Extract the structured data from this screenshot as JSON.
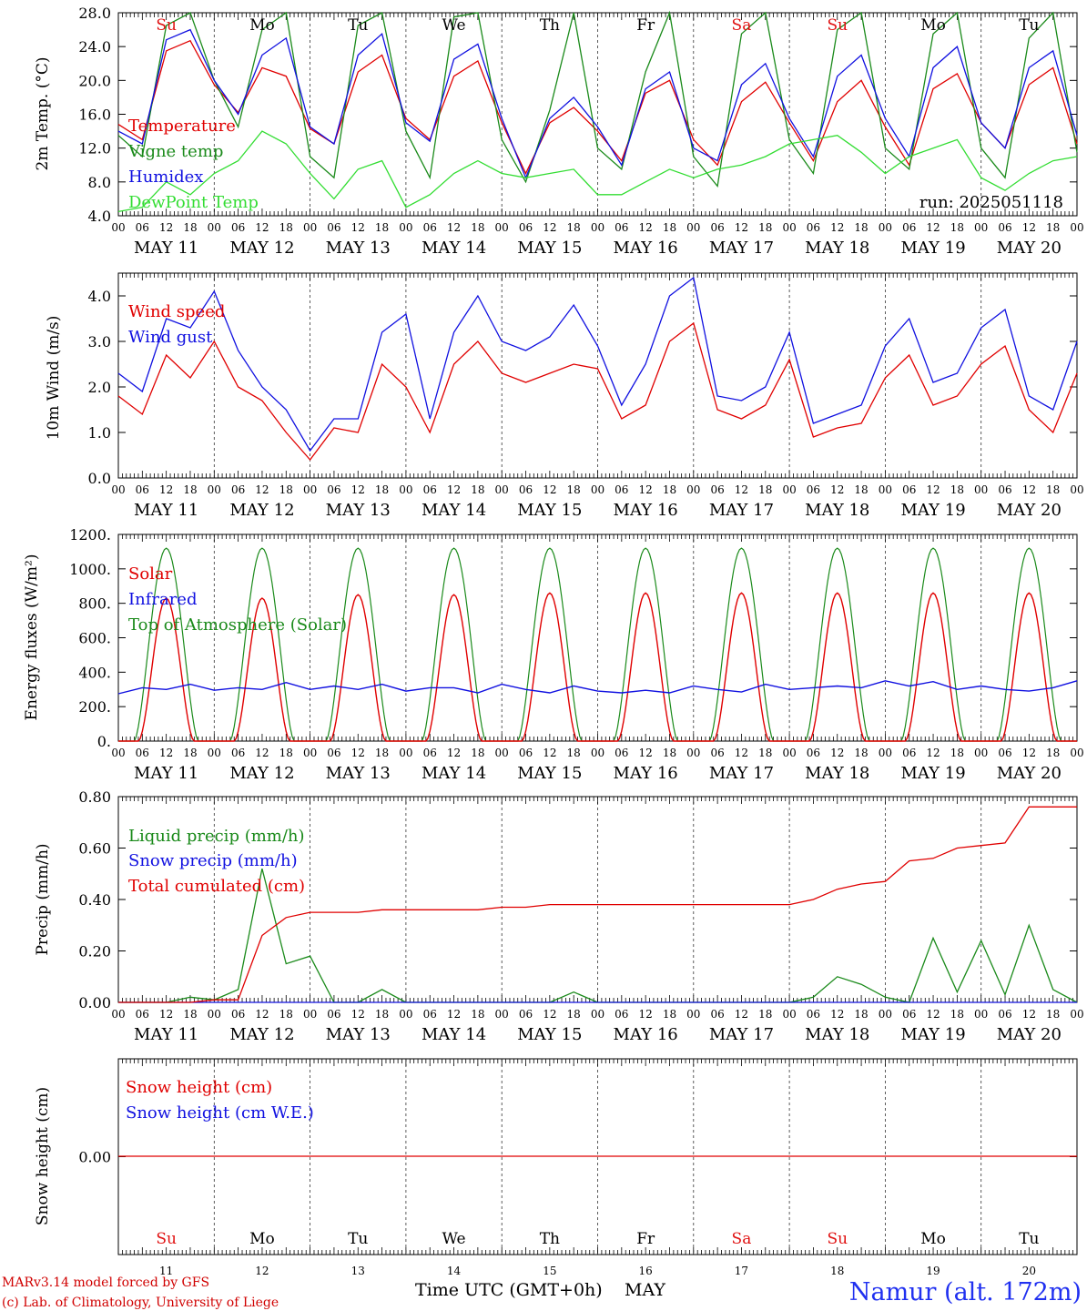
{
  "days": [
    "MAY 11",
    "MAY 12",
    "MAY 13",
    "MAY 14",
    "MAY 15",
    "MAY 16",
    "MAY 17",
    "MAY 18",
    "MAY 19",
    "MAY 20"
  ],
  "dow": [
    "Su",
    "Mo",
    "Tu",
    "We",
    "Th",
    "Fr",
    "Sa",
    "Su",
    "Mo",
    "Tu"
  ],
  "dow_colors": [
    "#e01010",
    "#000000",
    "#000000",
    "#000000",
    "#000000",
    "#000000",
    "#e01010",
    "#e01010",
    "#000000",
    "#000000"
  ],
  "day_numbers": [
    "11",
    "12",
    "13",
    "14",
    "15",
    "16",
    "17",
    "18",
    "19",
    "20"
  ],
  "hour_labels": [
    "00",
    "06",
    "12",
    "18"
  ],
  "colors": {
    "red": "#e00000",
    "green": "#1a8a1a",
    "blue": "#1010e0",
    "lightgreen": "#33dd33",
    "gray": "#555555"
  },
  "run_label": "run: 2025051118",
  "footer": {
    "model": "MARv3.14 model forced by GFS",
    "lab": "(c) Lab. of Climatology, University of Liege",
    "xaxis": "Time UTC (GMT+0h)",
    "month": "MAY",
    "station": "Namur (alt. 172m)"
  },
  "chart_data": [
    {
      "type": "line",
      "ylabel": "2m Temp. (°C)",
      "ylim": [
        4,
        28
      ],
      "yticks": [
        "4.0",
        "8.0",
        "12.0",
        "16.0",
        "20.0",
        "24.0",
        "28.0"
      ],
      "x_hours": [
        0,
        6,
        12,
        18,
        24,
        30,
        36,
        42,
        48,
        54,
        60,
        66,
        72,
        78,
        84,
        90,
        96,
        102,
        108,
        114,
        120,
        126,
        132,
        138,
        144,
        150,
        156,
        162,
        168,
        174,
        180,
        186,
        192,
        198,
        204,
        210,
        216,
        222,
        228,
        234,
        240
      ],
      "series": [
        {
          "name": "Temperature",
          "color": "#e00000",
          "values": [
            14.8,
            13.0,
            23.5,
            24.7,
            19.5,
            16.2,
            21.5,
            20.5,
            14.3,
            12.5,
            21.0,
            23.0,
            15.5,
            13.0,
            20.5,
            22.3,
            15.0,
            9.0,
            15.0,
            16.8,
            14.0,
            10.5,
            18.5,
            20.0,
            13.0,
            10.0,
            17.5,
            19.8,
            15.0,
            10.5,
            17.5,
            20.0,
            14.5,
            10.0,
            19.0,
            20.8,
            15.0,
            12.0,
            19.5,
            21.5,
            12.5
          ]
        },
        {
          "name": "Vigne temp",
          "color": "#1a8a1a",
          "values": [
            13.5,
            11.0,
            26.5,
            28.0,
            20.0,
            14.5,
            26.0,
            30.0,
            11.0,
            8.5,
            26.5,
            30.0,
            14.0,
            8.5,
            27.5,
            30.0,
            13.0,
            8.0,
            16.5,
            28.0,
            12.0,
            9.5,
            21.0,
            29.0,
            11.0,
            7.5,
            25.5,
            28.0,
            13.0,
            9.0,
            26.0,
            28.0,
            12.0,
            9.5,
            25.5,
            30.0,
            12.0,
            8.5,
            25.0,
            30.0,
            11.5
          ]
        },
        {
          "name": "Humidex",
          "color": "#1010e0",
          "values": [
            14.0,
            12.5,
            24.8,
            26.0,
            20.0,
            16.0,
            23.0,
            25.0,
            14.5,
            12.5,
            23.0,
            25.5,
            15.0,
            12.8,
            22.5,
            24.3,
            15.5,
            8.5,
            15.5,
            18.0,
            14.5,
            10.0,
            19.0,
            21.0,
            12.0,
            10.5,
            19.5,
            22.0,
            15.5,
            11.0,
            20.5,
            23.0,
            15.5,
            11.0,
            21.5,
            24.0,
            15.0,
            12.0,
            21.5,
            23.5,
            13.5
          ]
        },
        {
          "name": "DewPoint Temp",
          "color": "#33dd33",
          "values": [
            4.5,
            5.0,
            8.0,
            6.5,
            9.0,
            10.5,
            14.0,
            12.5,
            9.0,
            6.0,
            9.5,
            10.5,
            5.0,
            6.5,
            9.0,
            10.5,
            9.0,
            8.5,
            9.0,
            9.5,
            6.5,
            6.5,
            8.0,
            9.5,
            8.5,
            9.5,
            10.0,
            11.0,
            12.5,
            13.0,
            13.5,
            11.5,
            9.0,
            11.0,
            12.0,
            13.0,
            8.5,
            7.0,
            9.0,
            10.5,
            11.0
          ]
        }
      ]
    },
    {
      "type": "line",
      "ylabel": "10m Wind (m/s)",
      "ylim": [
        0,
        4.5
      ],
      "yticks": [
        "0.0",
        "1.0",
        "2.0",
        "3.0",
        "4.0"
      ],
      "x_hours": [
        0,
        6,
        12,
        18,
        24,
        30,
        36,
        42,
        48,
        54,
        60,
        66,
        72,
        78,
        84,
        90,
        96,
        102,
        108,
        114,
        120,
        126,
        132,
        138,
        144,
        150,
        156,
        162,
        168,
        174,
        180,
        186,
        192,
        198,
        204,
        210,
        216,
        222,
        228,
        234,
        240
      ],
      "series": [
        {
          "name": "Wind speed",
          "color": "#e00000",
          "values": [
            1.8,
            1.4,
            2.7,
            2.2,
            3.0,
            2.0,
            1.7,
            1.0,
            0.4,
            1.1,
            1.0,
            2.5,
            2.0,
            1.0,
            2.5,
            3.0,
            2.3,
            2.1,
            2.3,
            2.5,
            2.4,
            1.3,
            1.6,
            3.0,
            3.4,
            1.5,
            1.3,
            1.6,
            2.6,
            0.9,
            1.1,
            1.2,
            2.2,
            2.7,
            1.6,
            1.8,
            2.5,
            2.9,
            1.5,
            1.0,
            2.3
          ]
        },
        {
          "name": "Wind gust",
          "color": "#1010e0",
          "values": [
            2.3,
            1.9,
            3.5,
            3.3,
            4.1,
            2.8,
            2.0,
            1.5,
            0.6,
            1.3,
            1.3,
            3.2,
            3.6,
            1.3,
            3.2,
            4.0,
            3.0,
            2.8,
            3.1,
            3.8,
            2.9,
            1.6,
            2.5,
            4.0,
            4.4,
            1.8,
            1.7,
            2.0,
            3.2,
            1.2,
            1.4,
            1.6,
            2.9,
            3.5,
            2.1,
            2.3,
            3.3,
            3.7,
            1.8,
            1.5,
            3.0
          ]
        }
      ]
    },
    {
      "type": "line",
      "ylabel": "Energy fluxes (W/m²)",
      "ylim": [
        0,
        1200
      ],
      "yticks": [
        "0.",
        "200.",
        "400.",
        "600.",
        "800.",
        "1000.",
        "1200."
      ],
      "legend": [
        "Solar",
        "Infrared",
        "Top of Atmosphere (Solar)"
      ],
      "solar_peaks_wm2": [
        830,
        830,
        850,
        850,
        860,
        860,
        860,
        860,
        860,
        860
      ],
      "toa_peak_wm2": 1120,
      "infrared_wm2": [
        275,
        310,
        300,
        330,
        295,
        310,
        300,
        340,
        300,
        320,
        300,
        330,
        290,
        310,
        310,
        280,
        330,
        300,
        280,
        320,
        290,
        280,
        295,
        280,
        320,
        300,
        285,
        330,
        300,
        310,
        320,
        310,
        350,
        320,
        345,
        300,
        320,
        300,
        290,
        310,
        350
      ]
    },
    {
      "type": "line",
      "ylabel": "Precip (mm/h)",
      "ylim": [
        0,
        0.8
      ],
      "yticks": [
        "0.00",
        "0.20",
        "0.40",
        "0.60",
        "0.80"
      ],
      "x_hours": [
        0,
        6,
        12,
        18,
        24,
        30,
        36,
        42,
        48,
        54,
        60,
        66,
        72,
        78,
        84,
        90,
        96,
        102,
        108,
        114,
        120,
        126,
        132,
        138,
        144,
        150,
        156,
        162,
        168,
        174,
        180,
        186,
        192,
        198,
        204,
        210,
        216,
        222,
        228,
        234,
        240
      ],
      "series": [
        {
          "name": "Liquid precip (mm/h)",
          "color": "#1a8a1a",
          "values": [
            0,
            0,
            0,
            0.02,
            0.01,
            0.05,
            0.52,
            0.15,
            0.18,
            0,
            0,
            0.05,
            0,
            0,
            0,
            0,
            0,
            0,
            0,
            0.04,
            0,
            0,
            0,
            0,
            0,
            0,
            0,
            0,
            0,
            0.02,
            0.1,
            0.07,
            0.02,
            0,
            0.25,
            0.04,
            0.24,
            0.03,
            0.3,
            0.05,
            0
          ]
        },
        {
          "name": "Snow precip (mm/h)",
          "color": "#1010e0",
          "values": [
            0,
            0,
            0,
            0,
            0,
            0,
            0,
            0,
            0,
            0,
            0,
            0,
            0,
            0,
            0,
            0,
            0,
            0,
            0,
            0,
            0,
            0,
            0,
            0,
            0,
            0,
            0,
            0,
            0,
            0,
            0,
            0,
            0,
            0,
            0,
            0,
            0,
            0,
            0,
            0,
            0
          ]
        },
        {
          "name": "Total cumulated (cm)",
          "color": "#e00000",
          "values": [
            0,
            0,
            0,
            0,
            0.01,
            0.01,
            0.26,
            0.33,
            0.35,
            0.35,
            0.35,
            0.36,
            0.36,
            0.36,
            0.36,
            0.36,
            0.37,
            0.37,
            0.38,
            0.38,
            0.38,
            0.38,
            0.38,
            0.38,
            0.38,
            0.38,
            0.38,
            0.38,
            0.38,
            0.4,
            0.44,
            0.46,
            0.47,
            0.55,
            0.56,
            0.6,
            0.61,
            0.62,
            0.76,
            0.76,
            0.76
          ]
        }
      ]
    },
    {
      "type": "line",
      "ylabel": "Snow height (cm)",
      "yticks": [
        "0.00"
      ],
      "series": [
        {
          "name": "Snow height (cm)",
          "color": "#e00000",
          "values": [
            0,
            0
          ]
        },
        {
          "name": "Snow height (cm W.E.)",
          "color": "#1010e0",
          "values": [
            0,
            0
          ]
        }
      ]
    }
  ]
}
